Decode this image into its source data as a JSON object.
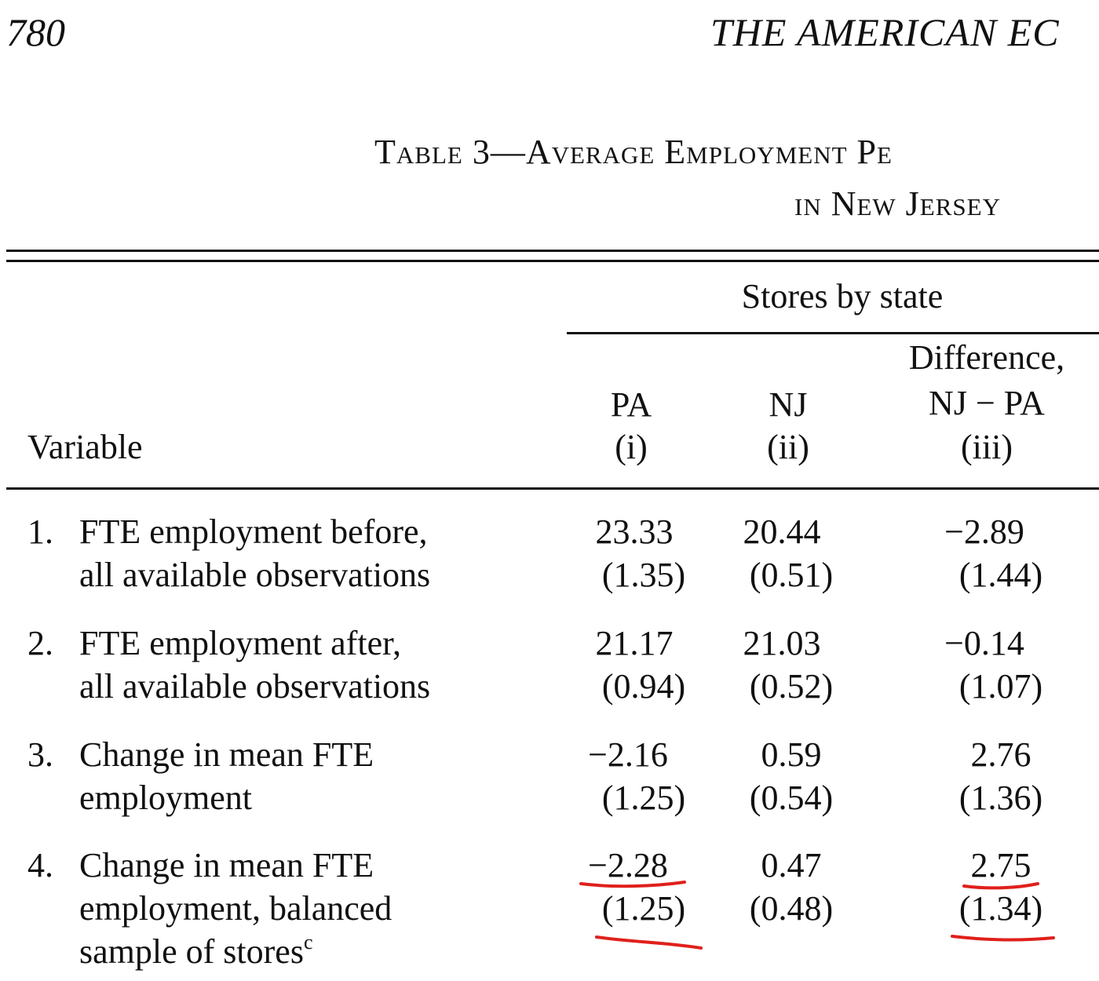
{
  "header": {
    "page_number": "780",
    "journal_title": "THE AMERICAN EC"
  },
  "caption": {
    "line1": "Table 3—Average Employment Pe",
    "line2": "in New Jersey"
  },
  "column_headers": {
    "spanner": "Stores by state",
    "variable": "Variable",
    "pa": "PA",
    "pa_num": "(i)",
    "nj": "NJ",
    "nj_num": "(ii)",
    "diff_line1": "Difference,",
    "diff_line2": "NJ − PA",
    "diff_num": "(iii)"
  },
  "rows": [
    {
      "num": "1.",
      "line1": "FTE employment before,",
      "line2": "all available observations",
      "pa": "23.33",
      "pa_se": "(1.35)",
      "nj": "20.44",
      "nj_se": "(0.51)",
      "diff": "−2.89",
      "diff_se": "(1.44)"
    },
    {
      "num": "2.",
      "line1": "FTE employment after,",
      "line2": "all available observations",
      "pa": "21.17",
      "pa_se": "(0.94)",
      "nj": "21.03",
      "nj_se": "(0.52)",
      "diff": "−0.14",
      "diff_se": "(1.07)"
    },
    {
      "num": "3.",
      "line1": "Change in mean FTE",
      "line2": "employment",
      "pa": "−2.16",
      "pa_se": "(1.25)",
      "nj": "0.59",
      "nj_se": "(0.54)",
      "diff": "2.76",
      "diff_se": "(1.36)"
    },
    {
      "num": "4.",
      "line1": "Change in mean FTE",
      "line2": "employment, balanced",
      "line3": "sample of stores",
      "footnote": "c",
      "pa": "−2.28",
      "pa_se": "(1.25)",
      "nj": "0.47",
      "nj_se": "(0.48)",
      "diff": "2.75",
      "diff_se": "(1.34)"
    }
  ],
  "annotation_color": "#e0201b"
}
